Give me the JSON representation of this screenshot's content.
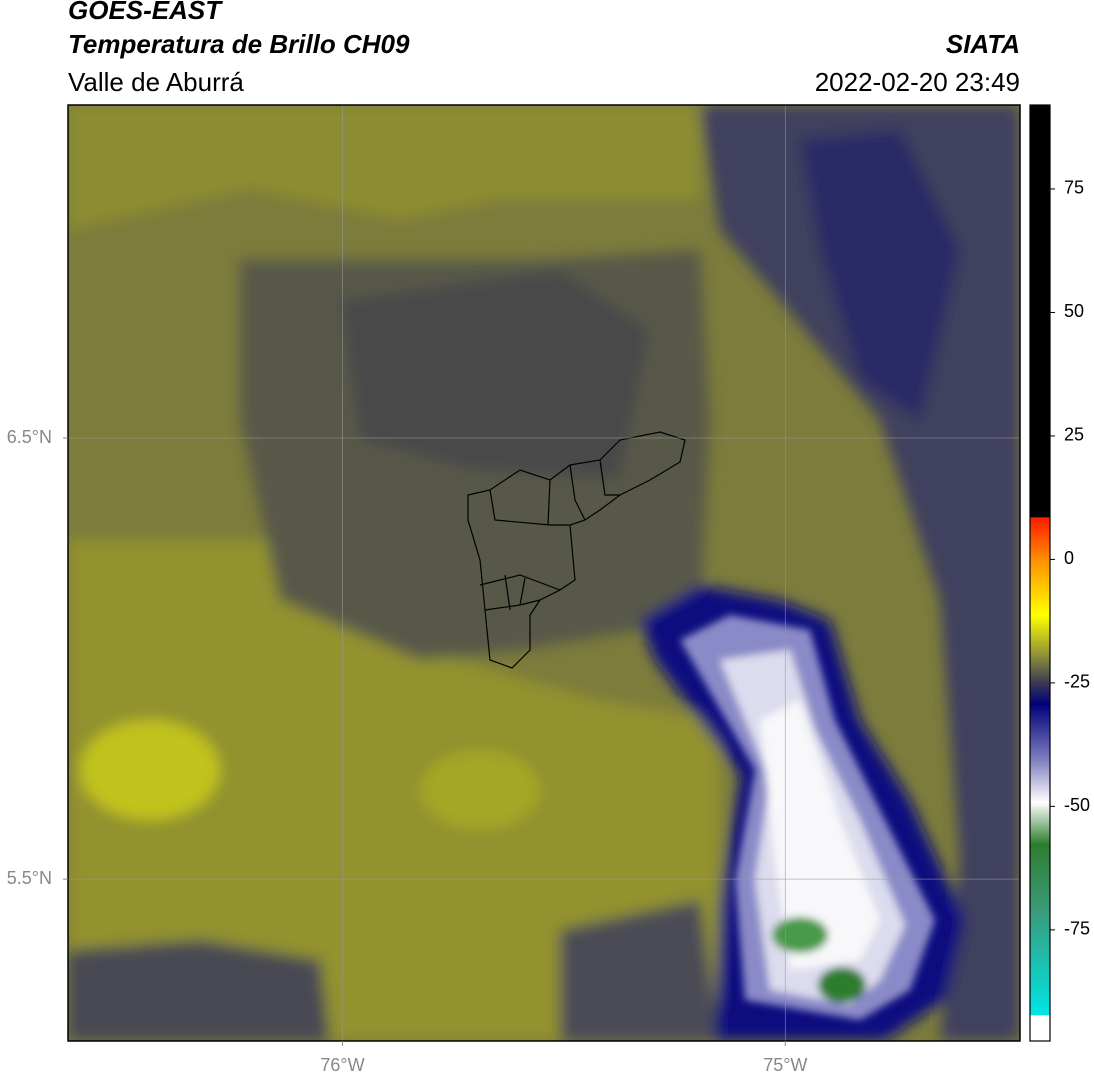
{
  "chart_data": {
    "type": "map",
    "title": "GOES-EAST",
    "subtitle": "Temperatura de Brillo CH09",
    "region": "Valle de Aburrá",
    "source": "SIATA",
    "datetime": "2022-02-20 23:49",
    "xlim": [
      -76.62,
      -74.47
    ],
    "ylim": [
      5.133,
      7.255
    ],
    "xticks": [
      {
        "value": -76,
        "label": "76°W"
      },
      {
        "value": -75,
        "label": "75°W"
      }
    ],
    "yticks": [
      {
        "value": 5.5,
        "label": "5.5°N"
      },
      {
        "value": 6.5,
        "label": "6.5°N"
      }
    ],
    "grid": true,
    "colorbar": {
      "lim": [
        -97.5,
        92
      ],
      "ticks": [
        -75,
        -50,
        -25,
        0,
        25,
        50,
        75
      ]
    }
  }
}
